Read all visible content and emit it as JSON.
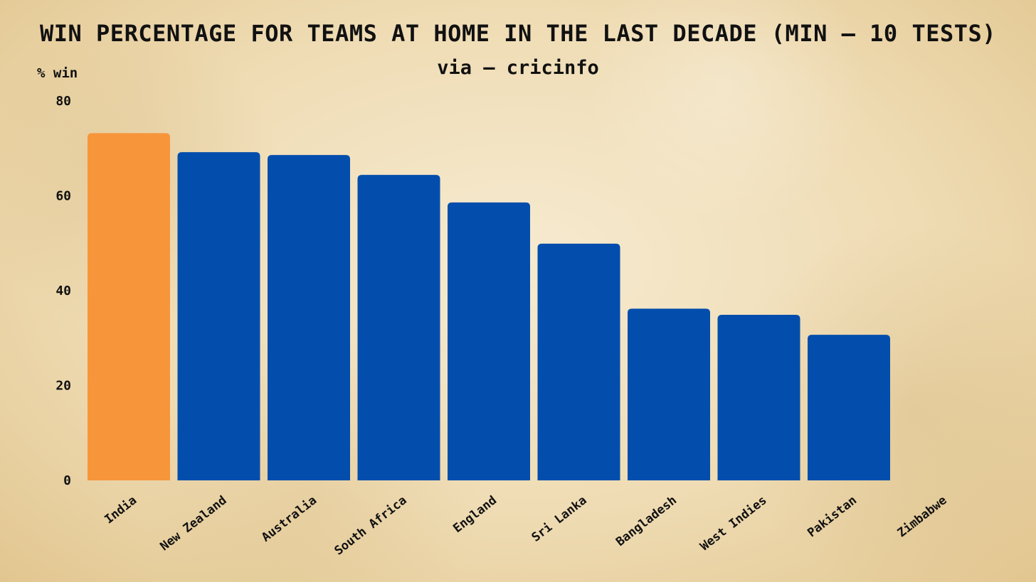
{
  "chart_data": {
    "type": "bar",
    "title": "WIN PERCENTAGE FOR TEAMS AT HOME IN THE LAST DECADE (MIN – 10 TESTS)",
    "subtitle": "via – cricinfo",
    "ylabel": "% win",
    "xlabel": "",
    "ylim": [
      0,
      80
    ],
    "yticks": [
      0,
      20,
      40,
      60,
      80
    ],
    "categories": [
      "India",
      "New Zealand",
      "Australia",
      "South Africa",
      "England",
      "Sri Lanka",
      "Bangladesh",
      "West Indies",
      "Pakistan",
      "Zimbabwe"
    ],
    "values": [
      73.2,
      69.2,
      68.6,
      64.4,
      58.6,
      49.9,
      36.2,
      34.9,
      30.7,
      0
    ],
    "grid": false,
    "legend": "none",
    "colors": {
      "highlight": "#F7953B",
      "default": "#034EAD",
      "highlight_category": "India"
    }
  }
}
